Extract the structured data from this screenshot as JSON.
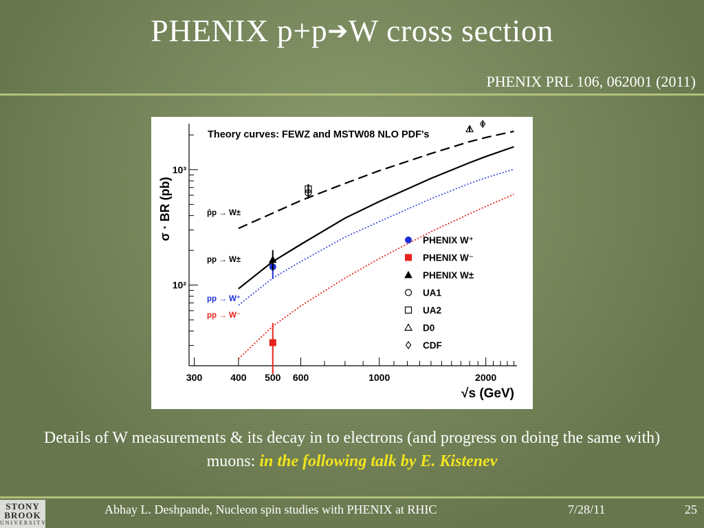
{
  "slide": {
    "title_part1": "PHENIX p+p",
    "title_arrow": "➔",
    "title_part2": "W cross section",
    "reference": "PHENIX PRL 106, 062001 (2011)",
    "caption_text": "Details of W measurements & its decay in to electrons (and progress on doing the same  with) muons: ",
    "caption_highlight": "in the following talk by E. Kistenev",
    "footer_author": "Abhay L. Deshpande, Nucleon spin studies with PHENIX at RHIC",
    "footer_date": "7/28/11",
    "footer_page": "25",
    "logo_lines": [
      "STONY",
      "BROOK",
      "UNIVERSITY"
    ],
    "colors": {
      "rule": "#b3c07a",
      "highlight": "#f2e51e",
      "background": "#7d8f5c"
    }
  },
  "chart_data": {
    "type": "line",
    "title": "Theory curves: FEWZ and MSTW08 NLO PDF's",
    "ylabel": "σ · BR (pb)",
    "xlabel": "√s (GeV)",
    "xscale": "log",
    "yscale": "log",
    "xlim": [
      290,
      2450
    ],
    "ylim": [
      20,
      2500
    ],
    "xtick_labels": [
      "300",
      "400",
      "500",
      "600",
      "1000",
      "2000"
    ],
    "xticks": [
      300,
      400,
      500,
      600,
      1000,
      2000
    ],
    "ytick_labels": [
      "10²",
      "10³"
    ],
    "yticks": [
      100,
      1000
    ],
    "series": [
      {
        "name": "p̄p → W±",
        "style": "dashed",
        "color": "#000000",
        "x": [
          400,
          500,
          600,
          800,
          1000,
          1400,
          1800,
          2000,
          2400
        ],
        "y": [
          310,
          420,
          540,
          760,
          980,
          1380,
          1750,
          1900,
          2150
        ]
      },
      {
        "name": "pp → W±",
        "style": "solid",
        "color": "#000000",
        "x": [
          400,
          500,
          600,
          800,
          1000,
          1400,
          1800,
          2000,
          2400
        ],
        "y": [
          93,
          160,
          225,
          380,
          530,
          840,
          1150,
          1300,
          1580
        ]
      },
      {
        "name": "pp → W⁺",
        "style": "dotted",
        "color": "#3a4cd8",
        "x": [
          400,
          500,
          600,
          800,
          1000,
          1400,
          1800,
          2000,
          2400
        ],
        "y": [
          67,
          115,
          160,
          260,
          355,
          560,
          760,
          850,
          1010
        ]
      },
      {
        "name": "pp → W⁻",
        "style": "dotted",
        "color": "#e8221c",
        "x": [
          400,
          500,
          600,
          800,
          1000,
          1400,
          1800,
          2000,
          2400
        ],
        "y": [
          23,
          44,
          66,
          115,
          170,
          290,
          415,
          480,
          610
        ]
      }
    ],
    "points": [
      {
        "label": "PHENIX W⁺",
        "marker": "circle-filled",
        "color": "#1d2fd6",
        "x": 500,
        "y": 144,
        "err_lo": 113,
        "err_hi": 175
      },
      {
        "label": "PHENIX W⁻",
        "marker": "square-filled",
        "color": "#e8221c",
        "x": 500,
        "y": 31.7,
        "err_lo": 17,
        "err_hi": 47
      },
      {
        "label": "PHENIX W±",
        "marker": "triangle-filled",
        "color": "#000000",
        "x": 500,
        "y": 166,
        "err_lo": 133,
        "err_hi": 201
      },
      {
        "label": "UA1",
        "marker": "circle-open",
        "color": "#000000",
        "x": 630,
        "y": 630,
        "err_lo": 560,
        "err_hi": 700
      },
      {
        "label": "UA2",
        "marker": "square-open",
        "color": "#000000",
        "x": 630,
        "y": 680,
        "err_lo": 610,
        "err_hi": 750
      },
      {
        "label": "D0",
        "marker": "triangle-open",
        "color": "#000000",
        "x": 1800,
        "y": 2250,
        "err_lo": 2130,
        "err_hi": 2370
      },
      {
        "label": "CDF",
        "marker": "diamond-open",
        "color": "#000000",
        "x": 1960,
        "y": 2490,
        "err_lo": 2400,
        "err_hi": 2580
      }
    ],
    "curve_labels": [
      {
        "text": "p̄p → W±",
        "color": "#000000"
      },
      {
        "text": "pp → W±",
        "color": "#000000"
      },
      {
        "text": "pp → W⁺",
        "color": "#1d2fd6"
      },
      {
        "text": "pp → W⁻",
        "color": "#e8221c"
      }
    ],
    "legend_placement": "lower-right inside",
    "grid": false
  }
}
